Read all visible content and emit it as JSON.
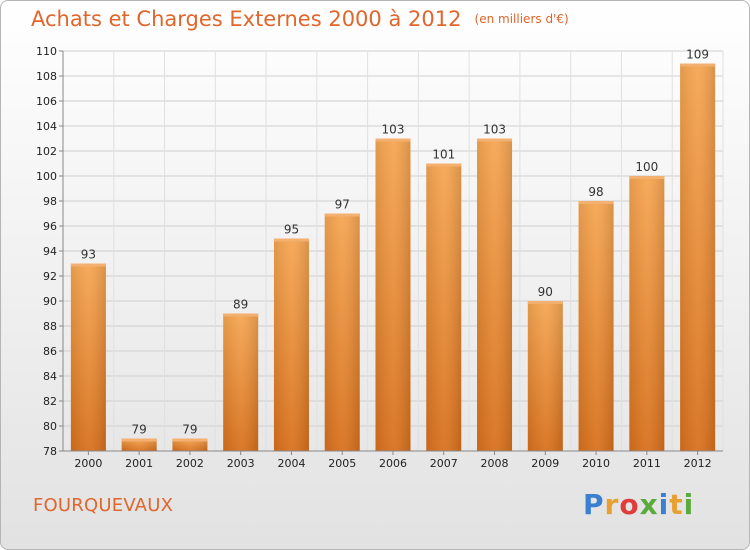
{
  "header": {
    "title": "Achats et Charges Externes 2000 à 2012",
    "unit": "(en milliers d'€)"
  },
  "footer": {
    "commune": "FOURQUEVAUX",
    "logo_letters": [
      "P",
      "r",
      "o",
      "x",
      "i",
      "t",
      "i"
    ],
    "logo_colors": [
      "#3a7fd0",
      "#e8a030",
      "#e03c3c",
      "#5aaa3c",
      "#3a7fd0",
      "#e8a030",
      "#5aaa3c"
    ]
  },
  "chart_data": {
    "type": "bar",
    "title": "Achats et Charges Externes 2000 à 2012",
    "subtitle": "(en milliers d'€)",
    "categories": [
      "2000",
      "2001",
      "2002",
      "2003",
      "2004",
      "2005",
      "2006",
      "2007",
      "2008",
      "2009",
      "2010",
      "2011",
      "2012"
    ],
    "values": [
      93,
      79,
      79,
      89,
      95,
      97,
      103,
      101,
      103,
      90,
      98,
      100,
      109
    ],
    "ylim": [
      78,
      110
    ],
    "yticks": [
      78,
      80,
      82,
      84,
      86,
      88,
      90,
      92,
      94,
      96,
      98,
      100,
      102,
      104,
      106,
      108,
      110
    ],
    "grid": true,
    "bar_color": "#e88a30",
    "title_color": "#e0662c"
  }
}
